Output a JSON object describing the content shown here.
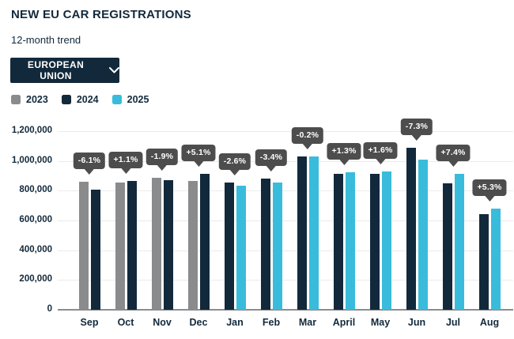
{
  "header": {
    "title": "NEW EU CAR REGISTRATIONS",
    "subtitle": "12-month trend"
  },
  "region_selector": {
    "label": "EUROPEAN UNION"
  },
  "colors": {
    "navy": "#12293B",
    "cyan": "#39BCDC",
    "gray": "#898B8D",
    "tooltip_bg": "#4D4D4D",
    "tooltip_text": "#FFFFFF",
    "gridline": "#EBEBEB",
    "axis_line": "#8A8D8F",
    "background": "#FFFFFF"
  },
  "chart_data": {
    "type": "bar",
    "title": "NEW EU CAR REGISTRATIONS",
    "subtitle": "12-month trend",
    "categories": [
      "Sep",
      "Oct",
      "Nov",
      "Dec",
      "Jan",
      "Feb",
      "Mar",
      "April",
      "May",
      "Jun",
      "Jul",
      "Aug"
    ],
    "series": [
      {
        "name": "2023",
        "color": "#898B8D",
        "values": [
          861000,
          857000,
          887000,
          866000,
          null,
          null,
          null,
          null,
          null,
          null,
          null,
          null
        ]
      },
      {
        "name": "2024",
        "color": "#12293B",
        "values": [
          809000,
          866000,
          870000,
          911000,
          853000,
          884000,
          1032000,
          914000,
          912000,
          1090000,
          852000,
          643000
        ]
      },
      {
        "name": "2025",
        "color": "#39BCDC",
        "values": [
          null,
          null,
          null,
          null,
          831000,
          854000,
          1029000,
          925000,
          927000,
          1010000,
          915000,
          678000
        ]
      }
    ],
    "change_labels": [
      "-6.1%",
      "+1.1%",
      "-1.9%",
      "+5.1%",
      "-2.6%",
      "-3.4%",
      "-0.2%",
      "+1.3%",
      "+1.6%",
      "-7.3%",
      "+7.4%",
      "+5.3%"
    ],
    "xlabel": "",
    "ylabel": "",
    "ylim": [
      0,
      1200000
    ],
    "y_tick_step": 200000,
    "y_tick_labels": [
      "0",
      "200,000",
      "400,000",
      "600,000",
      "800,000",
      "1,000,000",
      "1,200,000"
    ],
    "grid": true,
    "legend_position": "top-left"
  }
}
